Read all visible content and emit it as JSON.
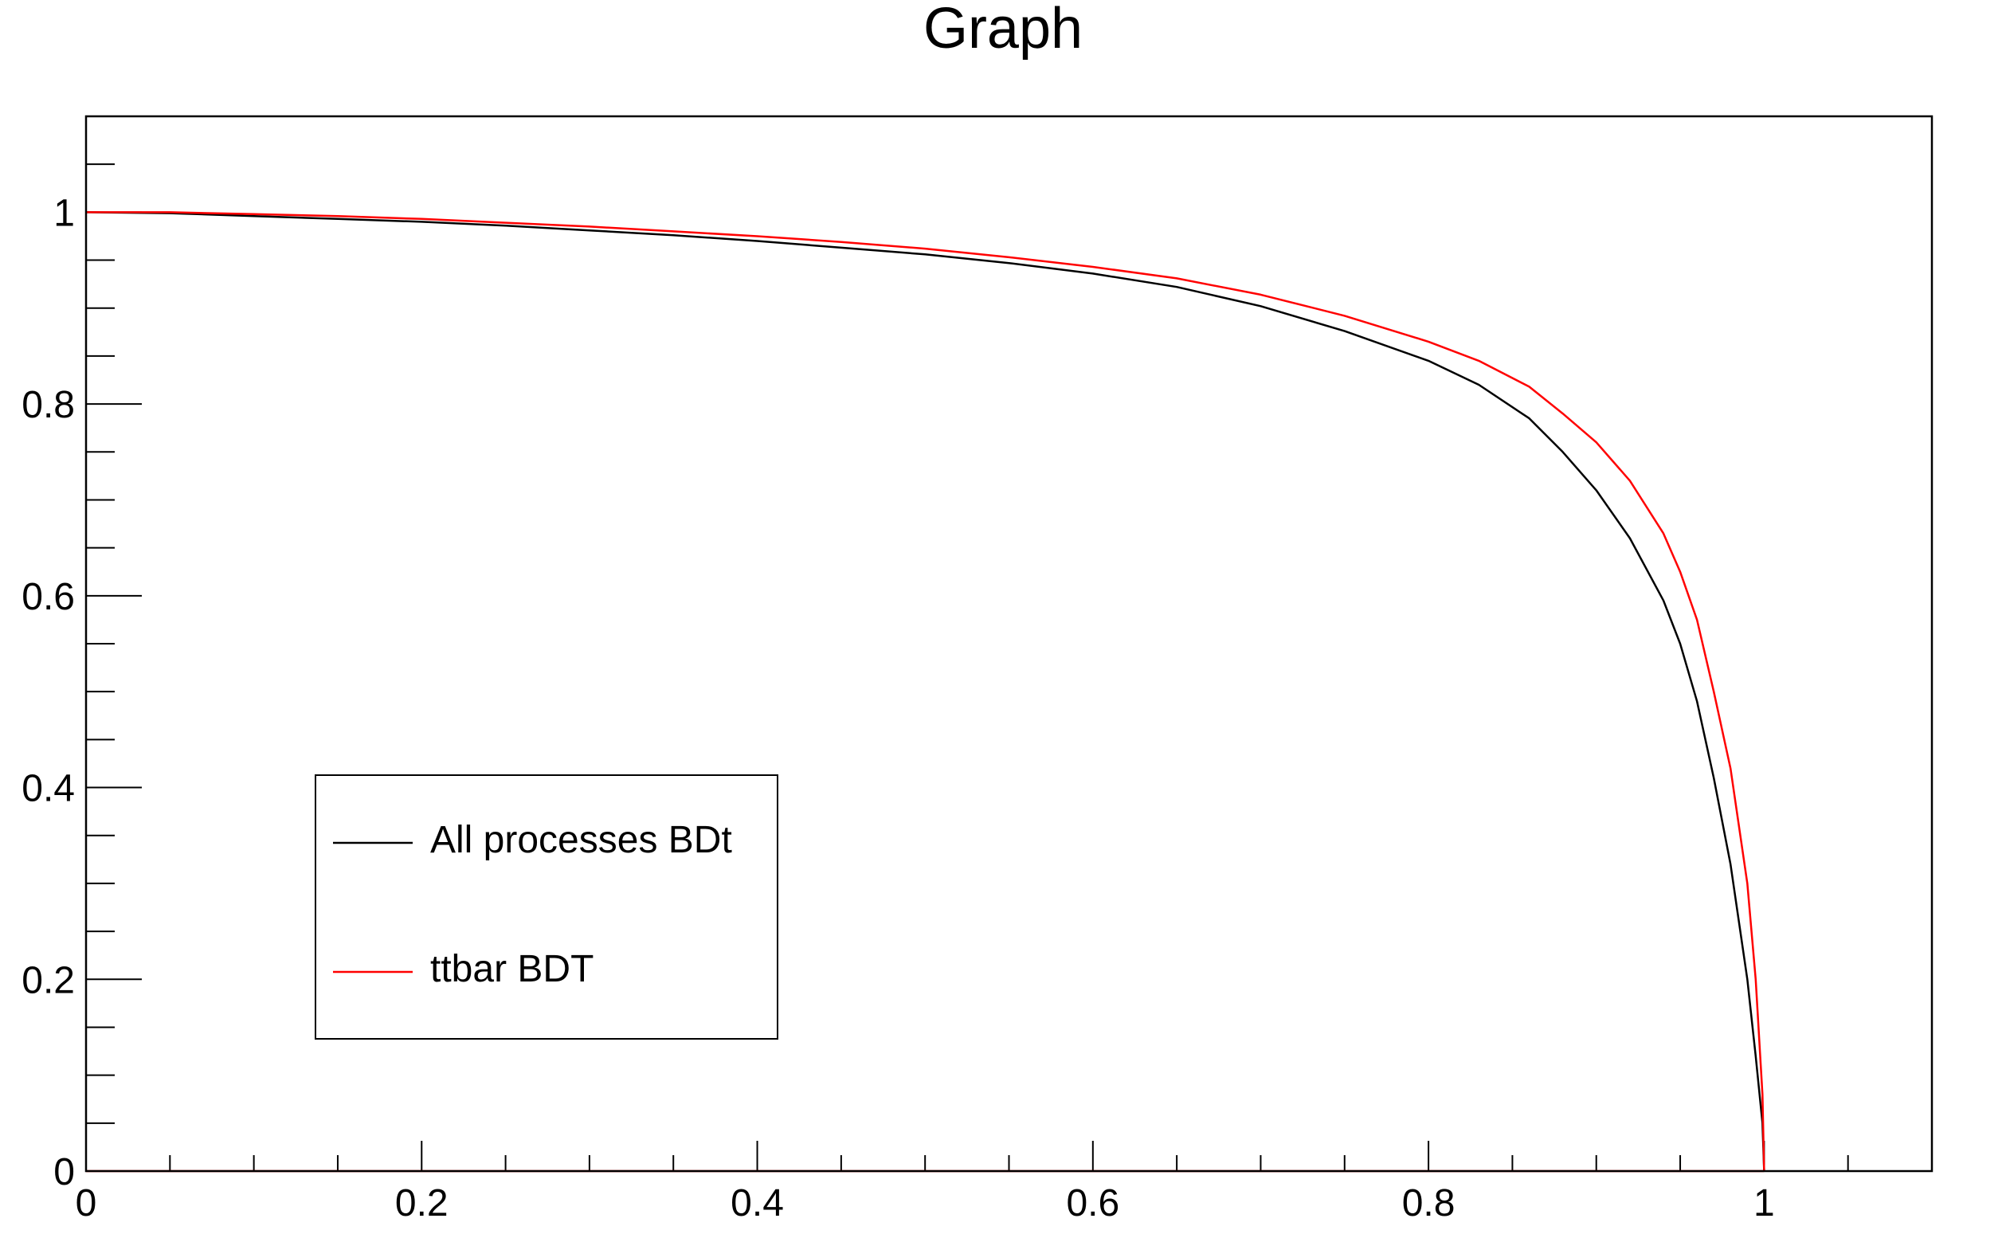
{
  "chart_data": {
    "type": "line",
    "title": "Graph",
    "xlabel": "",
    "ylabel": "",
    "xlim": [
      0,
      1.1
    ],
    "ylim": [
      0,
      1.1
    ],
    "x_ticks": [
      0,
      0.2,
      0.4,
      0.6,
      0.8,
      1
    ],
    "x_tick_labels": [
      "0",
      "0.2",
      "0.4",
      "0.6",
      "0.8",
      "1"
    ],
    "y_ticks": [
      0,
      0.2,
      0.4,
      0.6,
      0.8,
      1
    ],
    "y_tick_labels": [
      "0",
      "0.2",
      "0.4",
      "0.6",
      "0.8",
      "1"
    ],
    "grid": false,
    "legend_position": "bottom-left",
    "series": [
      {
        "name": "All processes BDt",
        "color": "#000000",
        "x": [
          0,
          0.05,
          0.1,
          0.15,
          0.2,
          0.25,
          0.3,
          0.35,
          0.4,
          0.45,
          0.5,
          0.55,
          0.6,
          0.65,
          0.7,
          0.75,
          0.8,
          0.83,
          0.86,
          0.88,
          0.9,
          0.92,
          0.94,
          0.95,
          0.96,
          0.97,
          0.98,
          0.99,
          0.995,
          0.999,
          1.0,
          1.0
        ],
        "y": [
          1.0,
          0.999,
          0.996,
          0.993,
          0.99,
          0.986,
          0.981,
          0.976,
          0.97,
          0.963,
          0.956,
          0.947,
          0.936,
          0.922,
          0.902,
          0.876,
          0.845,
          0.82,
          0.785,
          0.75,
          0.71,
          0.66,
          0.595,
          0.55,
          0.49,
          0.41,
          0.32,
          0.2,
          0.12,
          0.05,
          0.0,
          0.0
        ]
      },
      {
        "name": "ttbar BDT",
        "color": "#ff0000",
        "x": [
          0,
          0.05,
          0.1,
          0.15,
          0.2,
          0.25,
          0.3,
          0.35,
          0.4,
          0.45,
          0.5,
          0.55,
          0.6,
          0.65,
          0.7,
          0.75,
          0.8,
          0.83,
          0.86,
          0.88,
          0.9,
          0.92,
          0.94,
          0.95,
          0.96,
          0.97,
          0.98,
          0.99,
          0.995,
          0.999,
          1.0,
          1.0
        ],
        "y": [
          1.0,
          1.0,
          0.998,
          0.996,
          0.993,
          0.989,
          0.985,
          0.98,
          0.975,
          0.969,
          0.962,
          0.953,
          0.943,
          0.931,
          0.914,
          0.892,
          0.865,
          0.845,
          0.818,
          0.79,
          0.76,
          0.72,
          0.665,
          0.625,
          0.575,
          0.5,
          0.42,
          0.3,
          0.2,
          0.08,
          0.0,
          0.0
        ]
      },
      {
        "name": "",
        "color": "#ff0000",
        "x": [
          0,
          1.0
        ],
        "y": [
          0,
          0
        ]
      }
    ]
  }
}
